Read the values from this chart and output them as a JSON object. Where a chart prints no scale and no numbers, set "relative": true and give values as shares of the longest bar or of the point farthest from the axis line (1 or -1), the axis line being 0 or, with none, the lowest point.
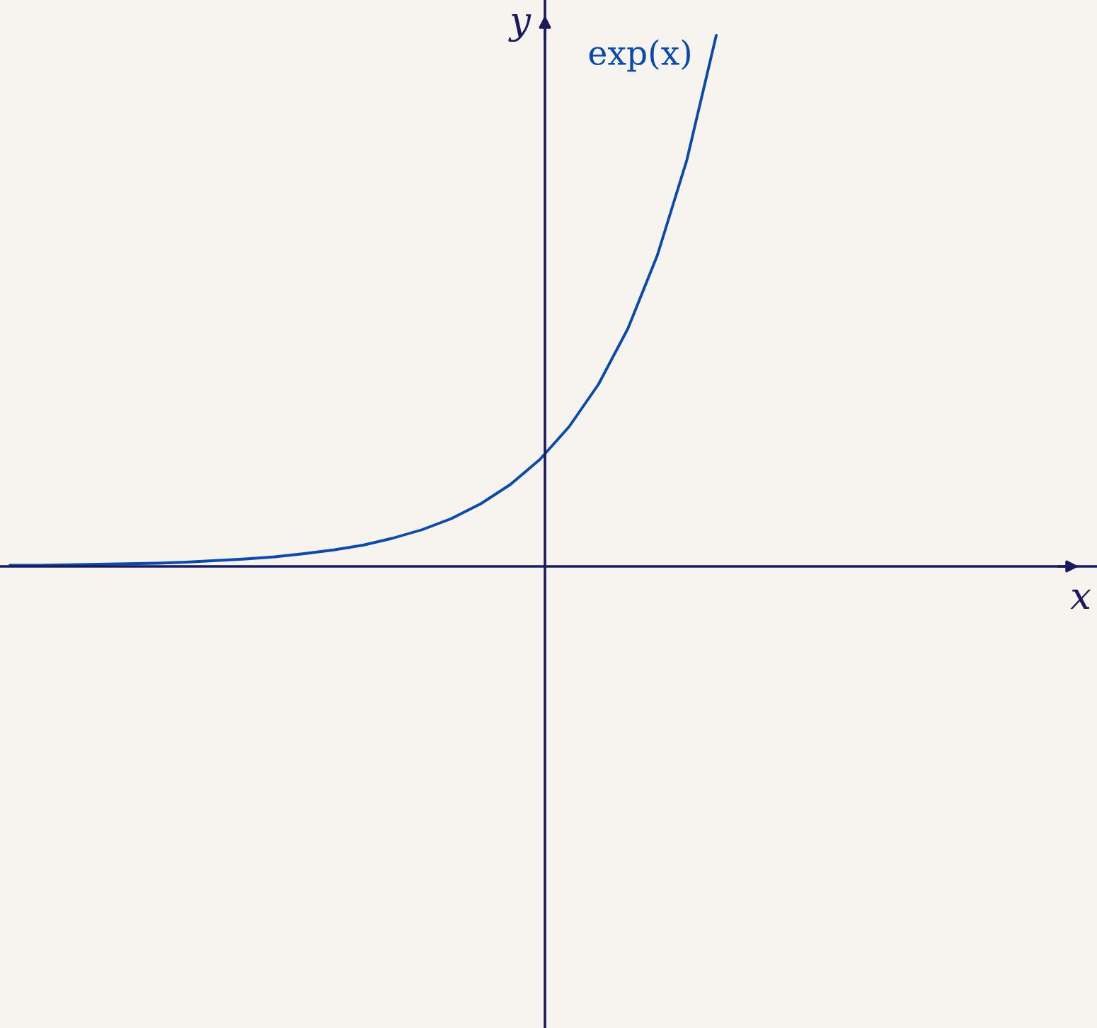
{
  "chart_data": {
    "type": "line",
    "relative": true,
    "annotations": [
      "x"
    ],
    "ylabel": "y",
    "categories": [
      null,
      null,
      null,
      null,
      null,
      null,
      null,
      null,
      null,
      null,
      null,
      null,
      null,
      null,
      null,
      null,
      null,
      null,
      null,
      null,
      null,
      null,
      null,
      null,
      null
    ],
    "series": [
      {
        "name": "exp(x)",
        "color": "#0a4aa8",
        "values": [
          0.002,
          0.002,
          0.003,
          0.004,
          0.005,
          0.006,
          0.008,
          0.011,
          0.014,
          0.018,
          0.024,
          0.031,
          0.04,
          0.053,
          0.069,
          0.09,
          0.118,
          0.154,
          0.201,
          0.263,
          0.343,
          0.448,
          0.586,
          0.765,
          1
        ]
      }
    ]
  }
}
